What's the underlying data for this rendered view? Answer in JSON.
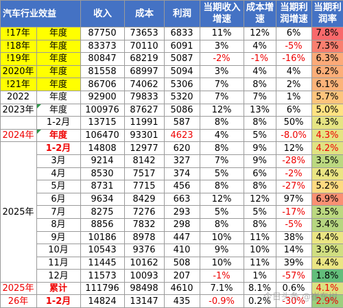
{
  "table": {
    "headers": [
      "汽车行业效益",
      "收入",
      "成本",
      "利润",
      "当期收入增速",
      "成本增速",
      "当期利润增速",
      "当期利润率"
    ],
    "column_colors": {
      "header_bg": "#4472c4",
      "year_highlight": "#ffff00",
      "negative_text": "#ee0000",
      "margin_low": "#63be7b",
      "margin_mid": "#ffeb84",
      "margin_high": "#f8696b"
    },
    "rows": [
      {
        "year": "!17年",
        "period": "年度",
        "revenue": "87750",
        "cost": "73653",
        "profit": "6833",
        "rev_growth": "11%",
        "cost_growth": "12%",
        "profit_growth": "6%",
        "margin": "7.8%",
        "margin_value": 7.8
      },
      {
        "year": "!18年",
        "period": "年度",
        "revenue": "83373",
        "cost": "70110",
        "profit": "6091",
        "rev_growth": "3%",
        "cost_growth": "4%",
        "profit_growth": "-5%",
        "margin": "7.3%",
        "margin_value": 7.3
      },
      {
        "year": "!19年",
        "period": "年度",
        "revenue": "80847",
        "cost": "68219",
        "profit": "5087",
        "rev_growth": "-2%",
        "cost_growth": "-1%",
        "profit_growth": "-16%",
        "margin": "6.3%",
        "margin_value": 6.3
      },
      {
        "year": "2020年",
        "period": "年度",
        "revenue": "81558",
        "cost": "68997",
        "profit": "5094",
        "rev_growth": "3%",
        "cost_growth": "4%",
        "profit_growth": "4%",
        "margin": "6.2%",
        "margin_value": 6.2
      },
      {
        "year": "!21年",
        "period": "年度",
        "revenue": "86706",
        "cost": "74062",
        "profit": "5306",
        "rev_growth": "7%",
        "cost_growth": "8%",
        "profit_growth": "2%",
        "margin": "6.1%",
        "margin_value": 6.1
      },
      {
        "year": "2022",
        "period": "年度",
        "revenue": "92900",
        "cost": "79833",
        "profit": "5320",
        "rev_growth": "7%",
        "cost_growth": "7%",
        "profit_growth": "1%",
        "margin": "5.7%",
        "margin_value": 5.7
      },
      {
        "year": "2023年",
        "period": "年度",
        "revenue": "100976",
        "cost": "87627",
        "profit": "5086",
        "rev_growth": "12%",
        "cost_growth": "13%",
        "profit_growth": "6%",
        "margin": "5.0%",
        "margin_value": 5.0
      },
      {
        "year": "",
        "period": "1-2月",
        "revenue": "13715",
        "cost": "11991",
        "profit": "587",
        "rev_growth": "8%",
        "cost_growth": "8%",
        "profit_growth": "50%",
        "margin": "4.3%",
        "margin_value": 4.3
      },
      {
        "year": "2024年",
        "period": "年度",
        "revenue": "106470",
        "cost": "93301",
        "profit": "4623",
        "rev_growth": "4%",
        "cost_growth": "5%",
        "profit_growth": "-8.0%",
        "margin": "4.3%",
        "margin_value": 4.3
      },
      {
        "year": "",
        "period": "1-2月",
        "revenue": "14808",
        "cost": "12977",
        "profit": "620",
        "rev_growth": "8%",
        "cost_growth": "9%",
        "profit_growth": "12%",
        "margin": "4.2%",
        "margin_value": 4.2
      },
      {
        "year": "",
        "period": "3月",
        "revenue": "9214",
        "cost": "8142",
        "profit": "327",
        "rev_growth": "7%",
        "cost_growth": "9%",
        "profit_growth": "-28%",
        "margin": "3.5%",
        "margin_value": 3.5
      },
      {
        "year": "",
        "period": "4月",
        "revenue": "8530",
        "cost": "7517",
        "profit": "374",
        "rev_growth": "5%",
        "cost_growth": "6%",
        "profit_growth": "-2%",
        "margin": "4.4%",
        "margin_value": 4.4
      },
      {
        "year": "",
        "period": "5月",
        "revenue": "8731",
        "cost": "7715",
        "profit": "456",
        "rev_growth": "8%",
        "cost_growth": "8%",
        "profit_growth": "-27%",
        "margin": "5.2%",
        "margin_value": 5.2
      },
      {
        "year": "",
        "period": "6月",
        "revenue": "9634",
        "cost": "8429",
        "profit": "663",
        "rev_growth": "12%",
        "cost_growth": "12%",
        "profit_growth": "97%",
        "margin": "6.9%",
        "margin_value": 6.9
      },
      {
        "year": "",
        "period": "7月",
        "revenue": "8275",
        "cost": "7276",
        "profit": "293",
        "rev_growth": "5%",
        "cost_growth": "5%",
        "profit_growth": "-17%",
        "margin": "3.5%",
        "margin_value": 3.5
      },
      {
        "year": "",
        "period": "8月",
        "revenue": "8856",
        "cost": "7832",
        "profit": "298",
        "rev_growth": "8%",
        "cost_growth": "8%",
        "profit_growth": "-5%",
        "margin": "3.4%",
        "margin_value": 3.4
      },
      {
        "year": "",
        "period": "9月",
        "revenue": "10186",
        "cost": "8978",
        "profit": "447",
        "rev_growth": "10%",
        "cost_growth": "11%",
        "profit_growth": "38%",
        "margin": "4.4%",
        "margin_value": 4.4
      },
      {
        "year": "",
        "period": "10月",
        "revenue": "10543",
        "cost": "9376",
        "profit": "410",
        "rev_growth": "9%",
        "cost_growth": "10%",
        "profit_growth": "14%",
        "margin": "3.9%",
        "margin_value": 3.9
      },
      {
        "year": "",
        "period": "11月",
        "revenue": "11445",
        "cost": "10162",
        "profit": "508",
        "rev_growth": "10%",
        "cost_growth": "11%",
        "profit_growth": "39%",
        "margin": "4.4%",
        "margin_value": 4.4
      },
      {
        "year": "",
        "period": "12月",
        "revenue": "11573",
        "cost": "10093",
        "profit": "207",
        "rev_growth": "-1%",
        "cost_growth": "1%",
        "profit_growth": "-57%",
        "margin": "1.8%",
        "margin_value": 1.8
      },
      {
        "year": "2025年",
        "period": "累计",
        "revenue": "111796",
        "cost": "98498",
        "profit": "4610",
        "rev_growth": "7.1%",
        "cost_growth": "8.1%",
        "profit_growth": "0.6%",
        "margin": "4.1%",
        "margin_value": 4.1
      },
      {
        "year": "26年",
        "period": "1-2月",
        "revenue": "14824",
        "cost": "13147",
        "profit": "435",
        "rev_growth": "-0.9%",
        "cost_growth": "0.2%",
        "profit_growth": "-30%",
        "margin": "2.9%",
        "margin_value": 2.9
      }
    ],
    "merged_year_label": "2025年",
    "watermark": "今日头条 @崔东树"
  }
}
